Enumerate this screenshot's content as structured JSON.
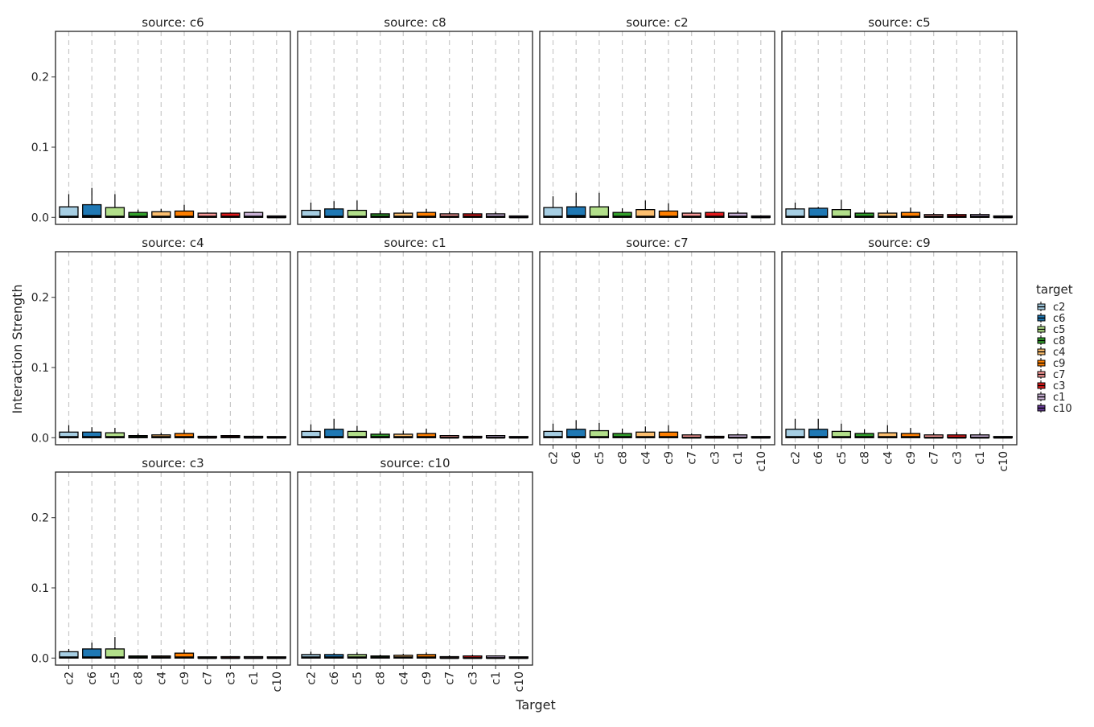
{
  "chart_data": {
    "type": "boxplot",
    "xlabel": "Target",
    "ylabel": "Interaction Strength",
    "ylim": [
      -0.01,
      0.265
    ],
    "yticks": [
      0.0,
      0.1,
      0.2
    ],
    "ytick_labels": [
      "0.0",
      "0.1",
      "0.2"
    ],
    "categories": [
      "c2",
      "c6",
      "c5",
      "c8",
      "c4",
      "c9",
      "c7",
      "c3",
      "c1",
      "c10"
    ],
    "colors": {
      "c2": "#a6cee3",
      "c6": "#1f78b4",
      "c5": "#b2df8a",
      "c8": "#33a02c",
      "c4": "#fdbf6f",
      "c9": "#ff7f00",
      "c7": "#fb9a99",
      "c3": "#e31a1c",
      "c1": "#cab2d6",
      "c10": "#6a3d9a"
    },
    "grid": "vertical dashed",
    "legend": {
      "title": "target",
      "position": "right",
      "items": [
        "c2",
        "c6",
        "c5",
        "c8",
        "c4",
        "c9",
        "c7",
        "c3",
        "c1",
        "c10"
      ]
    },
    "facets": [
      {
        "title": "source: c6",
        "boxes": [
          {
            "q1": 0.0,
            "median": 0.001,
            "q3": 0.015,
            "whisker": 0.033
          },
          {
            "q1": 0.0,
            "median": 0.002,
            "q3": 0.018,
            "whisker": 0.042
          },
          {
            "q1": 0.0,
            "median": 0.001,
            "q3": 0.014,
            "whisker": 0.033
          },
          {
            "q1": 0.0,
            "median": 0.001,
            "q3": 0.007,
            "whisker": 0.011
          },
          {
            "q1": 0.0,
            "median": 0.001,
            "q3": 0.008,
            "whisker": 0.012
          },
          {
            "q1": 0.0,
            "median": 0.001,
            "q3": 0.009,
            "whisker": 0.018
          },
          {
            "q1": 0.0,
            "median": 0.001,
            "q3": 0.006,
            "whisker": 0.007
          },
          {
            "q1": 0.0,
            "median": 0.001,
            "q3": 0.006,
            "whisker": 0.007
          },
          {
            "q1": 0.0,
            "median": 0.001,
            "q3": 0.007,
            "whisker": 0.008
          },
          {
            "q1": 0.0,
            "median": 0.0,
            "q3": 0.002,
            "whisker": 0.002
          }
        ]
      },
      {
        "title": "source: c8",
        "boxes": [
          {
            "q1": 0.0,
            "median": 0.001,
            "q3": 0.01,
            "whisker": 0.021
          },
          {
            "q1": 0.0,
            "median": 0.001,
            "q3": 0.012,
            "whisker": 0.023
          },
          {
            "q1": 0.0,
            "median": 0.001,
            "q3": 0.01,
            "whisker": 0.024
          },
          {
            "q1": 0.0,
            "median": 0.001,
            "q3": 0.005,
            "whisker": 0.01
          },
          {
            "q1": 0.0,
            "median": 0.001,
            "q3": 0.006,
            "whisker": 0.01
          },
          {
            "q1": 0.0,
            "median": 0.001,
            "q3": 0.007,
            "whisker": 0.012
          },
          {
            "q1": 0.0,
            "median": 0.001,
            "q3": 0.005,
            "whisker": 0.008
          },
          {
            "q1": 0.0,
            "median": 0.001,
            "q3": 0.005,
            "whisker": 0.008
          },
          {
            "q1": 0.0,
            "median": 0.001,
            "q3": 0.005,
            "whisker": 0.008
          },
          {
            "q1": 0.0,
            "median": 0.0,
            "q3": 0.002,
            "whisker": 0.002
          }
        ]
      },
      {
        "title": "source: c2",
        "boxes": [
          {
            "q1": 0.0,
            "median": 0.001,
            "q3": 0.014,
            "whisker": 0.03
          },
          {
            "q1": 0.0,
            "median": 0.002,
            "q3": 0.015,
            "whisker": 0.035
          },
          {
            "q1": 0.0,
            "median": 0.001,
            "q3": 0.015,
            "whisker": 0.035
          },
          {
            "q1": 0.0,
            "median": 0.001,
            "q3": 0.007,
            "whisker": 0.013
          },
          {
            "q1": 0.0,
            "median": 0.001,
            "q3": 0.011,
            "whisker": 0.024
          },
          {
            "q1": 0.0,
            "median": 0.001,
            "q3": 0.009,
            "whisker": 0.02
          },
          {
            "q1": 0.0,
            "median": 0.001,
            "q3": 0.006,
            "whisker": 0.009
          },
          {
            "q1": 0.0,
            "median": 0.001,
            "q3": 0.007,
            "whisker": 0.009
          },
          {
            "q1": 0.0,
            "median": 0.001,
            "q3": 0.006,
            "whisker": 0.009
          },
          {
            "q1": 0.0,
            "median": 0.0,
            "q3": 0.002,
            "whisker": 0.003
          }
        ]
      },
      {
        "title": "source: c5",
        "boxes": [
          {
            "q1": 0.0,
            "median": 0.001,
            "q3": 0.012,
            "whisker": 0.021
          },
          {
            "q1": 0.0,
            "median": 0.001,
            "q3": 0.013,
            "whisker": 0.015
          },
          {
            "q1": 0.0,
            "median": 0.001,
            "q3": 0.011,
            "whisker": 0.025
          },
          {
            "q1": 0.0,
            "median": 0.001,
            "q3": 0.006,
            "whisker": 0.01
          },
          {
            "q1": 0.0,
            "median": 0.001,
            "q3": 0.006,
            "whisker": 0.01
          },
          {
            "q1": 0.0,
            "median": 0.001,
            "q3": 0.007,
            "whisker": 0.014
          },
          {
            "q1": 0.0,
            "median": 0.001,
            "q3": 0.004,
            "whisker": 0.006
          },
          {
            "q1": 0.0,
            "median": 0.001,
            "q3": 0.004,
            "whisker": 0.006
          },
          {
            "q1": 0.0,
            "median": 0.001,
            "q3": 0.004,
            "whisker": 0.006
          },
          {
            "q1": 0.0,
            "median": 0.0,
            "q3": 0.002,
            "whisker": 0.002
          }
        ]
      },
      {
        "title": "source: c4",
        "boxes": [
          {
            "q1": 0.0,
            "median": 0.001,
            "q3": 0.008,
            "whisker": 0.018
          },
          {
            "q1": 0.0,
            "median": 0.001,
            "q3": 0.008,
            "whisker": 0.015
          },
          {
            "q1": 0.0,
            "median": 0.001,
            "q3": 0.007,
            "whisker": 0.014
          },
          {
            "q1": 0.0,
            "median": 0.001,
            "q3": 0.003,
            "whisker": 0.006
          },
          {
            "q1": 0.0,
            "median": 0.001,
            "q3": 0.004,
            "whisker": 0.007
          },
          {
            "q1": 0.0,
            "median": 0.001,
            "q3": 0.006,
            "whisker": 0.011
          },
          {
            "q1": 0.0,
            "median": 0.0,
            "q3": 0.002,
            "whisker": 0.003
          },
          {
            "q1": 0.0,
            "median": 0.001,
            "q3": 0.003,
            "whisker": 0.004
          },
          {
            "q1": 0.0,
            "median": 0.0,
            "q3": 0.002,
            "whisker": 0.003
          },
          {
            "q1": 0.0,
            "median": 0.0,
            "q3": 0.001,
            "whisker": 0.001
          }
        ]
      },
      {
        "title": "source: c1",
        "boxes": [
          {
            "q1": 0.0,
            "median": 0.001,
            "q3": 0.009,
            "whisker": 0.019
          },
          {
            "q1": 0.0,
            "median": 0.001,
            "q3": 0.012,
            "whisker": 0.027
          },
          {
            "q1": 0.0,
            "median": 0.001,
            "q3": 0.009,
            "whisker": 0.017
          },
          {
            "q1": 0.0,
            "median": 0.001,
            "q3": 0.005,
            "whisker": 0.009
          },
          {
            "q1": 0.0,
            "median": 0.001,
            "q3": 0.005,
            "whisker": 0.01
          },
          {
            "q1": 0.0,
            "median": 0.001,
            "q3": 0.006,
            "whisker": 0.013
          },
          {
            "q1": 0.0,
            "median": 0.0,
            "q3": 0.003,
            "whisker": 0.004
          },
          {
            "q1": 0.0,
            "median": 0.0,
            "q3": 0.002,
            "whisker": 0.003
          },
          {
            "q1": 0.0,
            "median": 0.0,
            "q3": 0.003,
            "whisker": 0.004
          },
          {
            "q1": 0.0,
            "median": 0.0,
            "q3": 0.001,
            "whisker": 0.001
          }
        ]
      },
      {
        "title": "source: c7",
        "boxes": [
          {
            "q1": 0.0,
            "median": 0.001,
            "q3": 0.009,
            "whisker": 0.02
          },
          {
            "q1": 0.0,
            "median": 0.001,
            "q3": 0.012,
            "whisker": 0.025
          },
          {
            "q1": 0.0,
            "median": 0.001,
            "q3": 0.01,
            "whisker": 0.021
          },
          {
            "q1": 0.0,
            "median": 0.001,
            "q3": 0.006,
            "whisker": 0.013
          },
          {
            "q1": 0.0,
            "median": 0.001,
            "q3": 0.008,
            "whisker": 0.016
          },
          {
            "q1": 0.0,
            "median": 0.001,
            "q3": 0.008,
            "whisker": 0.018
          },
          {
            "q1": 0.0,
            "median": 0.0,
            "q3": 0.004,
            "whisker": 0.006
          },
          {
            "q1": 0.0,
            "median": 0.0,
            "q3": 0.002,
            "whisker": 0.003
          },
          {
            "q1": 0.0,
            "median": 0.0,
            "q3": 0.004,
            "whisker": 0.006
          },
          {
            "q1": 0.0,
            "median": 0.0,
            "q3": 0.001,
            "whisker": 0.001
          }
        ]
      },
      {
        "title": "source: c9",
        "boxes": [
          {
            "q1": 0.0,
            "median": 0.001,
            "q3": 0.012,
            "whisker": 0.027
          },
          {
            "q1": 0.0,
            "median": 0.001,
            "q3": 0.012,
            "whisker": 0.027
          },
          {
            "q1": 0.0,
            "median": 0.001,
            "q3": 0.009,
            "whisker": 0.02
          },
          {
            "q1": 0.0,
            "median": 0.001,
            "q3": 0.006,
            "whisker": 0.012
          },
          {
            "q1": 0.0,
            "median": 0.001,
            "q3": 0.007,
            "whisker": 0.018
          },
          {
            "q1": 0.0,
            "median": 0.001,
            "q3": 0.006,
            "whisker": 0.014
          },
          {
            "q1": 0.0,
            "median": 0.0,
            "q3": 0.004,
            "whisker": 0.007
          },
          {
            "q1": 0.0,
            "median": 0.0,
            "q3": 0.004,
            "whisker": 0.008
          },
          {
            "q1": 0.0,
            "median": 0.0,
            "q3": 0.004,
            "whisker": 0.007
          },
          {
            "q1": 0.0,
            "median": 0.0,
            "q3": 0.001,
            "whisker": 0.001
          }
        ]
      },
      {
        "title": "source: c3",
        "boxes": [
          {
            "q1": 0.0,
            "median": 0.001,
            "q3": 0.009,
            "whisker": 0.013
          },
          {
            "q1": 0.0,
            "median": 0.001,
            "q3": 0.013,
            "whisker": 0.022
          },
          {
            "q1": 0.0,
            "median": 0.001,
            "q3": 0.013,
            "whisker": 0.03
          },
          {
            "q1": 0.0,
            "median": 0.001,
            "q3": 0.003,
            "whisker": 0.004
          },
          {
            "q1": 0.0,
            "median": 0.001,
            "q3": 0.003,
            "whisker": 0.004
          },
          {
            "q1": 0.0,
            "median": 0.001,
            "q3": 0.007,
            "whisker": 0.012
          },
          {
            "q1": 0.0,
            "median": 0.0,
            "q3": 0.001,
            "whisker": 0.002
          },
          {
            "q1": 0.0,
            "median": 0.0,
            "q3": 0.002,
            "whisker": 0.003
          },
          {
            "q1": 0.0,
            "median": 0.0,
            "q3": 0.002,
            "whisker": 0.002
          },
          {
            "q1": 0.0,
            "median": 0.0,
            "q3": 0.001,
            "whisker": 0.001
          }
        ]
      },
      {
        "title": "source: c10",
        "boxes": [
          {
            "q1": 0.0,
            "median": 0.001,
            "q3": 0.005,
            "whisker": 0.009
          },
          {
            "q1": 0.0,
            "median": 0.001,
            "q3": 0.005,
            "whisker": 0.007
          },
          {
            "q1": 0.0,
            "median": 0.001,
            "q3": 0.005,
            "whisker": 0.008
          },
          {
            "q1": 0.0,
            "median": 0.001,
            "q3": 0.003,
            "whisker": 0.005
          },
          {
            "q1": 0.0,
            "median": 0.001,
            "q3": 0.004,
            "whisker": 0.006
          },
          {
            "q1": 0.0,
            "median": 0.001,
            "q3": 0.005,
            "whisker": 0.008
          },
          {
            "q1": 0.0,
            "median": 0.0,
            "q3": 0.002,
            "whisker": 0.004
          },
          {
            "q1": 0.0,
            "median": 0.0,
            "q3": 0.003,
            "whisker": 0.005
          },
          {
            "q1": 0.0,
            "median": 0.0,
            "q3": 0.003,
            "whisker": 0.004
          },
          {
            "q1": 0.0,
            "median": 0.0,
            "q3": 0.001,
            "whisker": 0.002
          }
        ]
      }
    ]
  }
}
